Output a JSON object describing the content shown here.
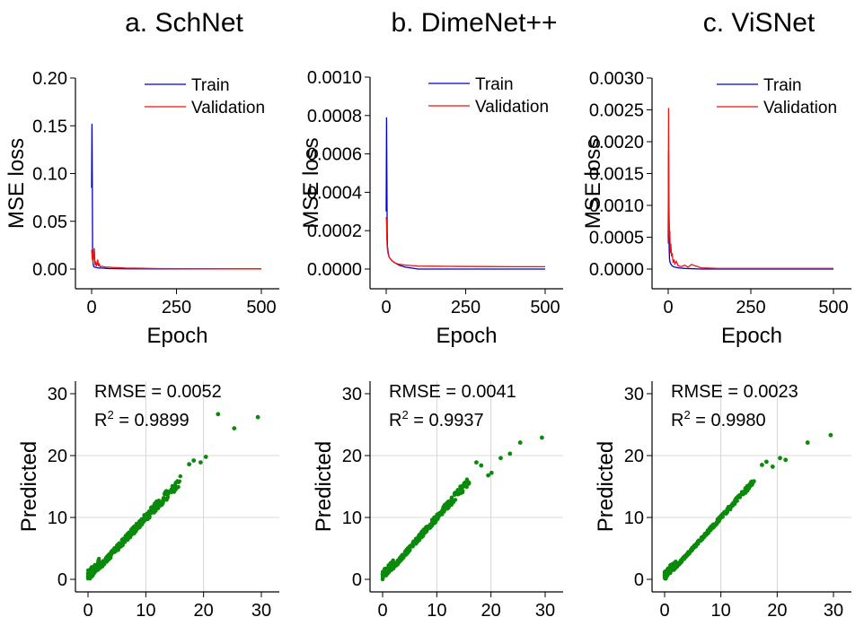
{
  "colors": {
    "train": "#0000cc",
    "validation": "#ee1111",
    "scatter": "#0a8a0a",
    "grid": "#cccccc"
  },
  "chart_data": [
    {
      "id": "schnet_loss",
      "type": "line",
      "title": "a. SchNet",
      "xlabel": "Epoch",
      "ylabel": "MSE loss",
      "xlim": [
        0,
        500
      ],
      "ylim": [
        0,
        0.2
      ],
      "xticks": [
        "0",
        "250",
        "500"
      ],
      "yticks": [
        "0.00",
        "0.05",
        "0.10",
        "0.15",
        "0.20"
      ],
      "legend": "top-right",
      "grid": false,
      "series": [
        {
          "name": "Train",
          "color": "#0000cc",
          "x": [
            0,
            1,
            2,
            3,
            4,
            5,
            6,
            8,
            10,
            15,
            20,
            30,
            50,
            100,
            200,
            300,
            400,
            500
          ],
          "y": [
            0.085,
            0.152,
            0.085,
            0.02,
            0.008,
            0.004,
            0.003,
            0.002,
            0.002,
            0.0015,
            0.001,
            0.001,
            0.0005,
            0.0003,
            0.0002,
            0.0001,
            0.0001,
            0.0001
          ]
        },
        {
          "name": "Validation",
          "color": "#ee1111",
          "x": [
            0,
            1,
            2,
            3,
            4,
            6,
            8,
            10,
            12,
            14,
            16,
            18,
            20,
            22,
            25,
            30,
            40,
            50,
            70,
            100,
            150,
            200,
            300,
            400,
            500
          ],
          "y": [
            0.02,
            0.016,
            0.01,
            0.018,
            0.006,
            0.012,
            0.022,
            0.004,
            0.008,
            0.003,
            0.005,
            0.01,
            0.003,
            0.006,
            0.002,
            0.003,
            0.002,
            0.002,
            0.0015,
            0.001,
            0.0008,
            0.0005,
            0.0003,
            0.0002,
            0.0002
          ]
        }
      ]
    },
    {
      "id": "dimenet_loss",
      "type": "line",
      "title": "b. DimeNet++",
      "xlabel": "Epoch",
      "ylabel": "MSE loss",
      "xlim": [
        0,
        500
      ],
      "ylim": [
        0,
        0.001
      ],
      "xticks": [
        "0",
        "250",
        "500"
      ],
      "yticks": [
        "0.0000",
        "0.0002",
        "0.0004",
        "0.0006",
        "0.0008",
        "0.0010"
      ],
      "legend": "top-right",
      "grid": false,
      "series": [
        {
          "name": "Train",
          "color": "#0000cc",
          "x": [
            0,
            1,
            2,
            3,
            4,
            6,
            8,
            10,
            15,
            20,
            30,
            40,
            60,
            80,
            100,
            150,
            200,
            300,
            400,
            500
          ],
          "y": [
            0.0003,
            0.00079,
            0.00052,
            0.0002,
            0.00012,
            9e-05,
            7e-05,
            6e-05,
            5e-05,
            4e-05,
            3e-05,
            2e-05,
            1e-05,
            5e-06,
            0.0,
            0.0,
            0.0,
            0.0,
            0.0,
            0.0
          ]
        },
        {
          "name": "Validation",
          "color": "#ee1111",
          "x": [
            0,
            1,
            2,
            3,
            4,
            6,
            8,
            10,
            15,
            20,
            30,
            40,
            60,
            80,
            100,
            150,
            200,
            300,
            400,
            500
          ],
          "y": [
            0.00027,
            0.00025,
            0.00016,
            0.00012,
            0.0001,
            8e-05,
            7e-05,
            6e-05,
            5e-05,
            4e-05,
            3e-05,
            2.5e-05,
            2e-05,
            1.8e-05,
            1.6e-05,
            1.5e-05,
            1.4e-05,
            1.3e-05,
            1.2e-05,
            1.2e-05
          ]
        }
      ]
    },
    {
      "id": "visnet_loss",
      "type": "line",
      "title": "c. ViSNet",
      "xlabel": "Epoch",
      "ylabel": "MSE loss",
      "xlim": [
        0,
        500
      ],
      "ylim": [
        0,
        0.003
      ],
      "xticks": [
        "0",
        "250",
        "500"
      ],
      "yticks": [
        "0.0000",
        "0.0005",
        "0.0010",
        "0.0015",
        "0.0020",
        "0.0025",
        "0.0030"
      ],
      "legend": "top-right",
      "grid": false,
      "series": [
        {
          "name": "Train",
          "color": "#0000cc",
          "x": [
            0,
            1,
            2,
            3,
            4,
            6,
            8,
            10,
            15,
            20,
            30,
            50,
            100,
            200,
            300,
            400,
            500
          ],
          "y": [
            0.0005,
            0.00185,
            0.0008,
            0.0003,
            0.00015,
            0.0001,
            8e-05,
            6e-05,
            4e-05,
            3e-05,
            2e-05,
            1e-05,
            0.0,
            0.0,
            0.0,
            0.0,
            0.0
          ]
        },
        {
          "name": "Validation",
          "color": "#ee1111",
          "x": [
            0,
            1,
            2,
            3,
            4,
            5,
            6,
            8,
            10,
            12,
            15,
            18,
            20,
            25,
            30,
            40,
            50,
            60,
            70,
            100,
            150,
            200,
            300,
            400,
            500
          ],
          "y": [
            0.0004,
            0.00253,
            0.0012,
            0.0008,
            0.0005,
            0.0006,
            0.00025,
            0.0004,
            0.0002,
            0.00025,
            0.0001,
            0.00015,
            8e-05,
            0.00012,
            5e-05,
            4e-05,
            6e-05,
            3e-05,
            7e-05,
            2e-05,
            1e-05,
            1e-05,
            1e-05,
            1e-05,
            1e-05
          ]
        }
      ]
    },
    {
      "id": "schnet_parity",
      "type": "scatter",
      "title": "",
      "xlabel": "",
      "ylabel": "Predicted",
      "xlim": [
        0,
        30
      ],
      "ylim": [
        0,
        30
      ],
      "xticks": [
        "0",
        "10",
        "20",
        "30"
      ],
      "yticks": [
        "0",
        "10",
        "20",
        "30"
      ],
      "grid": true,
      "annotation_rmse": "RMSE = 0.0052",
      "annotation_r2_prefix": "R",
      "annotation_r2_sup": "2",
      "annotation_r2_value": " = 0.9899",
      "band": {
        "x_max": 16,
        "spread": 0.6
      },
      "outliers": [
        [
          17.5,
          18.6
        ],
        [
          18.3,
          19.2
        ],
        [
          19.5,
          18.9
        ],
        [
          20.4,
          19.8
        ],
        [
          22.5,
          26.7
        ],
        [
          25.3,
          24.4
        ],
        [
          29.4,
          26.2
        ]
      ]
    },
    {
      "id": "dimenet_parity",
      "type": "scatter",
      "title": "",
      "xlabel": "",
      "ylabel": "Predicted",
      "xlim": [
        0,
        30
      ],
      "ylim": [
        0,
        30
      ],
      "xticks": [
        "0",
        "10",
        "20",
        "30"
      ],
      "yticks": [
        "0",
        "10",
        "20",
        "30"
      ],
      "grid": true,
      "annotation_rmse": "RMSE = 0.0041",
      "annotation_r2_prefix": "R",
      "annotation_r2_sup": "2",
      "annotation_r2_value": " = 0.9937",
      "band": {
        "x_max": 16,
        "spread": 0.5
      },
      "outliers": [
        [
          17.3,
          18.9
        ],
        [
          18.2,
          18.4
        ],
        [
          19.5,
          16.8
        ],
        [
          20.1,
          17.2
        ],
        [
          21.8,
          19.6
        ],
        [
          23.5,
          20.3
        ],
        [
          25.4,
          22.1
        ],
        [
          29.4,
          22.9
        ]
      ]
    },
    {
      "id": "visnet_parity",
      "type": "scatter",
      "title": "",
      "xlabel": "",
      "ylabel": "Predicted",
      "xlim": [
        0,
        30
      ],
      "ylim": [
        0,
        30
      ],
      "xticks": [
        "0",
        "10",
        "20",
        "30"
      ],
      "yticks": [
        "0",
        "10",
        "20",
        "30"
      ],
      "grid": true,
      "annotation_rmse": "RMSE = 0.0023",
      "annotation_r2_prefix": "R",
      "annotation_r2_sup": "2",
      "annotation_r2_value": " = 0.9980",
      "band": {
        "x_max": 16,
        "spread": 0.3
      },
      "outliers": [
        [
          17.3,
          18.5
        ],
        [
          18.1,
          19.0
        ],
        [
          19.2,
          18.2
        ],
        [
          20.5,
          19.6
        ],
        [
          21.5,
          19.3
        ],
        [
          25.4,
          22.1
        ],
        [
          29.5,
          23.3
        ]
      ]
    }
  ]
}
